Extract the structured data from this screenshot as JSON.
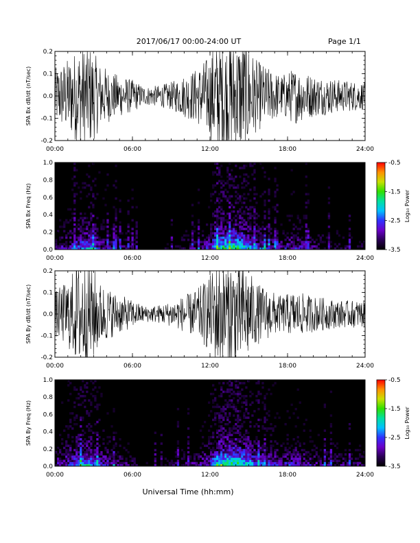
{
  "header": {
    "title": "2017/06/17  00:00-24:00 UT",
    "page": "Page 1/1"
  },
  "xlabel": "Universal Time (hh:mm)",
  "chart_data": [
    {
      "type": "line",
      "ylabel": "SPA Bx dB/dt (nT/sec)",
      "xlim": [
        0,
        24
      ],
      "ylim": [
        -0.2,
        0.2
      ],
      "x_ticks": [
        "00:00",
        "06:00",
        "12:00",
        "18:00",
        "24:00"
      ],
      "y_ticks": [
        "-0.2",
        "-0.1",
        "0.0",
        "0.1",
        "0.2"
      ],
      "series": [
        {
          "color": "#000000",
          "envelope_hours": [
            0,
            1,
            2,
            2.7,
            3.5,
            4.5,
            6,
            7,
            8,
            9,
            10,
            11,
            12,
            12.5,
            13,
            14,
            14.8,
            15.5,
            16.5,
            17.5,
            18.5,
            20,
            22,
            24
          ],
          "envelope_amplitude": [
            0.12,
            0.16,
            0.22,
            0.22,
            0.14,
            0.1,
            0.07,
            0.04,
            0.045,
            0.06,
            0.09,
            0.12,
            0.18,
            0.25,
            0.25,
            0.25,
            0.25,
            0.16,
            0.12,
            0.09,
            0.12,
            0.09,
            0.07,
            0.06
          ]
        }
      ]
    },
    {
      "type": "heatmap",
      "ylabel": "SPA Bx Freq (Hz)",
      "xlim": [
        0,
        24
      ],
      "ylim": [
        0,
        1.0
      ],
      "x_ticks": [
        "00:00",
        "06:00",
        "12:00",
        "18:00",
        "24:00"
      ],
      "y_ticks": [
        "0.0",
        "0.2",
        "0.4",
        "0.6",
        "0.8",
        "1.0"
      ],
      "colorbar": {
        "label": "Log₁₀ Power",
        "range": [
          -3.5,
          -0.5
        ],
        "ticks": [
          "-0.5",
          "-1.5",
          "-2.5",
          "-3.5"
        ],
        "colors": [
          "#000000",
          "#2a0055",
          "#6a00c8",
          "#3030ff",
          "#00c0ff",
          "#00e0a0",
          "#30e000",
          "#c8e000",
          "#ff9000",
          "#ff0000"
        ]
      },
      "activity_hours": [
        0,
        1,
        2,
        2.7,
        3.5,
        4.5,
        6,
        7,
        8,
        9,
        10,
        11,
        12,
        12.5,
        13,
        14,
        14.8,
        15.5,
        16.5,
        17.5,
        18.5,
        20,
        22,
        24
      ],
      "activity_level": [
        0.3,
        0.45,
        0.6,
        0.65,
        0.45,
        0.35,
        0.2,
        0.1,
        0.12,
        0.18,
        0.25,
        0.3,
        0.45,
        0.8,
        0.85,
        0.85,
        0.75,
        0.55,
        0.45,
        0.35,
        0.45,
        0.3,
        0.25,
        0.2
      ]
    },
    {
      "type": "line",
      "ylabel": "SPA By dB/dt (nT/sec)",
      "xlim": [
        0,
        24
      ],
      "ylim": [
        -0.2,
        0.2
      ],
      "x_ticks": [
        "00:00",
        "06:00",
        "12:00",
        "18:00",
        "24:00"
      ],
      "y_ticks": [
        "-0.2",
        "-0.1",
        "0.0",
        "0.1",
        "0.2"
      ],
      "series": [
        {
          "color": "#000000",
          "envelope_hours": [
            0,
            1,
            2,
            2.7,
            3.5,
            4.5,
            6,
            7,
            8,
            9,
            10,
            11,
            12,
            12.5,
            13,
            14,
            14.8,
            15.5,
            16.5,
            17.5,
            18.5,
            20,
            22,
            24
          ],
          "envelope_amplitude": [
            0.1,
            0.15,
            0.25,
            0.25,
            0.14,
            0.1,
            0.06,
            0.035,
            0.04,
            0.055,
            0.08,
            0.11,
            0.17,
            0.25,
            0.25,
            0.25,
            0.22,
            0.14,
            0.11,
            0.08,
            0.1,
            0.08,
            0.06,
            0.06
          ]
        }
      ]
    },
    {
      "type": "heatmap",
      "ylabel": "SPA By Freq (Hz)",
      "xlim": [
        0,
        24
      ],
      "ylim": [
        0,
        1.0
      ],
      "x_ticks": [
        "00:00",
        "06:00",
        "12:00",
        "18:00",
        "24:00"
      ],
      "y_ticks": [
        "0.0",
        "0.2",
        "0.4",
        "0.6",
        "0.8",
        "1.0"
      ],
      "colorbar": {
        "label": "Log₁₀ Power",
        "range": [
          -3.5,
          -0.5
        ],
        "ticks": [
          "-0.5",
          "-1.5",
          "-2.5",
          "-3.5"
        ],
        "colors": [
          "#000000",
          "#2a0055",
          "#6a00c8",
          "#3030ff",
          "#00c0ff",
          "#00e0a0",
          "#30e000",
          "#c8e000",
          "#ff9000",
          "#ff0000"
        ]
      },
      "activity_hours": [
        0,
        1,
        2,
        2.7,
        3.5,
        4.5,
        6,
        7,
        8,
        9,
        10,
        11,
        12,
        12.5,
        13,
        14,
        14.8,
        15.5,
        16.5,
        17.5,
        18.5,
        20,
        22,
        24
      ],
      "activity_level": [
        0.35,
        0.5,
        0.7,
        0.7,
        0.5,
        0.4,
        0.25,
        0.12,
        0.15,
        0.2,
        0.28,
        0.35,
        0.5,
        0.85,
        0.9,
        0.9,
        0.8,
        0.6,
        0.5,
        0.4,
        0.5,
        0.35,
        0.3,
        0.25
      ]
    }
  ]
}
